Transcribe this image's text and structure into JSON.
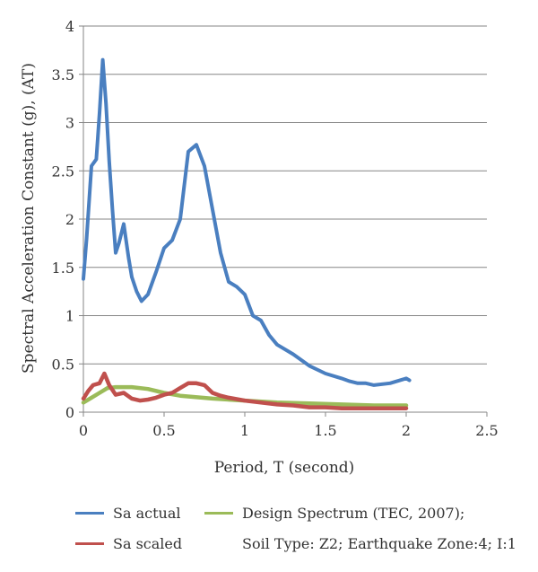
{
  "chart_data": {
    "type": "line",
    "title": "",
    "xlabel": "Period, T (second)",
    "ylabel": "Spectral Acceleration Constant (g), (AT)",
    "xlim": [
      0,
      2.5
    ],
    "ylim": [
      0,
      4
    ],
    "xticks": [
      "0",
      "0.5",
      "1",
      "1.5",
      "2",
      "2.5"
    ],
    "yticks": [
      "0",
      "0.5",
      "1",
      "1.5",
      "2",
      "2.5",
      "3",
      "3.5",
      "4"
    ],
    "grid": "horizontal",
    "legend_position": "bottom",
    "series": [
      {
        "name": "Sa actual",
        "color": "#4a7fc0",
        "x": [
          0,
          0.02,
          0.05,
          0.08,
          0.1,
          0.12,
          0.14,
          0.16,
          0.18,
          0.2,
          0.22,
          0.25,
          0.28,
          0.3,
          0.33,
          0.36,
          0.4,
          0.45,
          0.5,
          0.55,
          0.6,
          0.65,
          0.7,
          0.75,
          0.8,
          0.85,
          0.9,
          0.95,
          1.0,
          1.05,
          1.1,
          1.15,
          1.2,
          1.3,
          1.4,
          1.5,
          1.6,
          1.65,
          1.7,
          1.75,
          1.8,
          1.9,
          2.0,
          2.02
        ],
        "y": [
          1.38,
          1.8,
          2.55,
          2.62,
          3.1,
          3.65,
          3.2,
          2.6,
          2.1,
          1.65,
          1.75,
          1.95,
          1.6,
          1.4,
          1.25,
          1.15,
          1.22,
          1.45,
          1.7,
          1.78,
          2.0,
          2.7,
          2.77,
          2.55,
          2.1,
          1.65,
          1.35,
          1.3,
          1.22,
          1.0,
          0.95,
          0.8,
          0.7,
          0.6,
          0.48,
          0.4,
          0.35,
          0.32,
          0.3,
          0.3,
          0.28,
          0.3,
          0.35,
          0.33
        ]
      },
      {
        "name": "Sa scaled",
        "color": "#c0504d",
        "x": [
          0,
          0.03,
          0.06,
          0.1,
          0.13,
          0.16,
          0.2,
          0.25,
          0.3,
          0.35,
          0.4,
          0.45,
          0.5,
          0.55,
          0.6,
          0.65,
          0.7,
          0.75,
          0.8,
          0.85,
          0.9,
          1.0,
          1.1,
          1.2,
          1.3,
          1.4,
          1.5,
          1.6,
          1.7,
          1.8,
          1.9,
          2.0
        ],
        "y": [
          0.14,
          0.22,
          0.28,
          0.3,
          0.4,
          0.28,
          0.18,
          0.2,
          0.14,
          0.12,
          0.13,
          0.15,
          0.18,
          0.2,
          0.25,
          0.3,
          0.3,
          0.28,
          0.2,
          0.17,
          0.15,
          0.12,
          0.1,
          0.08,
          0.07,
          0.05,
          0.05,
          0.04,
          0.04,
          0.04,
          0.04,
          0.04
        ]
      },
      {
        "name": "Design Spectrum (TEC, 2007);",
        "color": "#9bbb59",
        "x": [
          0,
          0.05,
          0.1,
          0.15,
          0.2,
          0.3,
          0.4,
          0.5,
          0.6,
          0.8,
          1.0,
          1.2,
          1.4,
          1.6,
          1.8,
          2.0
        ],
        "y": [
          0.1,
          0.15,
          0.2,
          0.25,
          0.26,
          0.26,
          0.24,
          0.2,
          0.17,
          0.14,
          0.12,
          0.1,
          0.09,
          0.08,
          0.07,
          0.07
        ]
      }
    ],
    "legend_note": "Soil Type: Z2; Earthquake Zone:4; I:1"
  }
}
